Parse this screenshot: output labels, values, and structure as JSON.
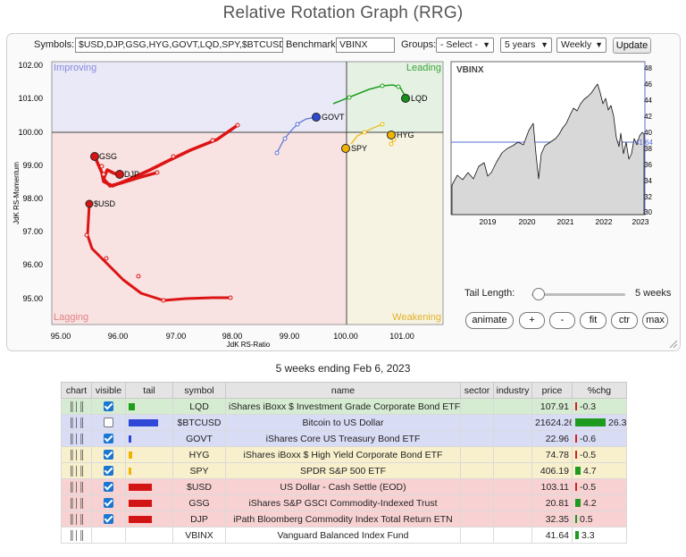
{
  "page_title": "Relative Rotation Graph (RRG)",
  "controls": {
    "symbols_label": "Symbols:",
    "symbols_value": "$USD,DJP,GSG,HYG,GOVT,LQD,SPY,$BTCUSD",
    "benchmark_label": "Benchmark:",
    "benchmark_value": "VBINX",
    "groups_label": "Groups:",
    "groups_value": "- Select -",
    "period_value": "5 years",
    "frequency_value": "Weekly",
    "update_label": "Update"
  },
  "rrg": {
    "y_axis_label": "JdK RS-Momentum",
    "x_axis_label": "JdK RS-Ratio",
    "x_ticks": [
      "95.00",
      "96.00",
      "97.00",
      "98.00",
      "99.00",
      "100.00",
      "101.00"
    ],
    "y_ticks": [
      "102.00",
      "101.00",
      "100.00",
      "99.00",
      "98.00",
      "97.00",
      "96.00",
      "95.00"
    ],
    "quadrants": {
      "improving": "Improving",
      "leading": "Leading",
      "lagging": "Lagging",
      "weakening": "Weakening"
    },
    "quadrant_colors": {
      "improving": "#e9e9f7",
      "leading": "#e5f2e3",
      "lagging": "#f8e2e2",
      "weakening": "#f6f3e2"
    },
    "labels": {
      "GSG": "GSG",
      "DJP": "DJP",
      "USD": "$USD",
      "GOVT": "GOVT",
      "LQD": "LQD",
      "SPY": "SPY",
      "HYG": "HYG"
    }
  },
  "benchmark_chart": {
    "label": "VBINX",
    "x_ticks": [
      "2019",
      "2020",
      "2021",
      "2022",
      "2023"
    ],
    "y_ticks": [
      "48",
      "46",
      "44",
      "42",
      "40",
      "38",
      "36",
      "34",
      "32",
      "30"
    ],
    "last_value": "41.64"
  },
  "tail": {
    "label": "Tail Length:",
    "value": "5 weeks"
  },
  "buttons": {
    "animate": "animate",
    "plus": "+",
    "minus": "-",
    "fit": "fit",
    "ctr": "ctr",
    "max": "max"
  },
  "caption": "5 weeks ending Feb 6, 2023",
  "table": {
    "headers": [
      "chart",
      "visible",
      "tail",
      "symbol",
      "name",
      "sector",
      "industry",
      "price",
      "%chg"
    ],
    "rows": [
      {
        "symbol": "LQD",
        "name": "iShares iBoxx $ Investment Grade Corporate Bond ETF",
        "sector": "",
        "industry": "",
        "price": "107.91",
        "chg": "-0.3",
        "visible": true,
        "row_color": "#d6ecd2",
        "tail_color": "#1f9d1f",
        "tail_len": 0.15,
        "chg_color": "#d62020",
        "chg_mag": 0.01
      },
      {
        "symbol": "$BTCUSD",
        "name": "Bitcoin to US Dollar",
        "sector": "",
        "industry": "",
        "price": "21624.26",
        "chg": "26.3",
        "visible": false,
        "row_color": "#d9dcf5",
        "tail_color": "#2e47d6",
        "tail_len": 0.75,
        "chg_color": "#1e9a1e",
        "chg_mag": 0.7
      },
      {
        "symbol": "GOVT",
        "name": "iShares Core US Treasury Bond ETF",
        "sector": "",
        "industry": "",
        "price": "22.96",
        "chg": "-0.6",
        "visible": true,
        "row_color": "#d9dcf5",
        "tail_color": "#2e47d6",
        "tail_len": 0.05,
        "chg_color": "#d62020",
        "chg_mag": 0.02
      },
      {
        "symbol": "HYG",
        "name": "iShares iBoxx $ High Yield Corporate Bond ETF",
        "sector": "",
        "industry": "",
        "price": "74.78",
        "chg": "-0.5",
        "visible": true,
        "row_color": "#f8efcc",
        "tail_color": "#f0b400",
        "tail_len": 0.08,
        "chg_color": "#d62020",
        "chg_mag": 0.02
      },
      {
        "symbol": "SPY",
        "name": "SPDR S&P 500 ETF",
        "sector": "",
        "industry": "",
        "price": "406.19",
        "chg": "4.7",
        "visible": true,
        "row_color": "#f8efcc",
        "tail_color": "#f0b400",
        "tail_len": 0.05,
        "chg_color": "#1e9a1e",
        "chg_mag": 0.13
      },
      {
        "symbol": "$USD",
        "name": "US Dollar - Cash Settle (EOD)",
        "sector": "",
        "industry": "",
        "price": "103.11",
        "chg": "-0.5",
        "visible": true,
        "row_color": "#f8d2d2",
        "tail_color": "#d21414",
        "tail_len": 0.6,
        "chg_color": "#d62020",
        "chg_mag": 0.02
      },
      {
        "symbol": "GSG",
        "name": "iShares S&P GSCI Commodity-Indexed Trust",
        "sector": "",
        "industry": "",
        "price": "20.81",
        "chg": "4.2",
        "visible": true,
        "row_color": "#f8d2d2",
        "tail_color": "#d21414",
        "tail_len": 0.6,
        "chg_color": "#1e9a1e",
        "chg_mag": 0.12
      },
      {
        "symbol": "DJP",
        "name": "iPath Bloomberg Commodity Index Total Return ETN",
        "sector": "",
        "industry": "",
        "price": "32.35",
        "chg": "0.5",
        "visible": true,
        "row_color": "#f8d2d2",
        "tail_color": "#d21414",
        "tail_len": 0.6,
        "chg_color": "#1e9a1e",
        "chg_mag": 0.02
      },
      {
        "symbol": "VBINX",
        "name": "Vanguard Balanced Index Fund",
        "sector": "",
        "industry": "",
        "price": "41.64",
        "chg": "3.3",
        "visible": null,
        "row_color": "#ffffff",
        "tail_color": "",
        "tail_len": 0,
        "chg_color": "#1e9a1e",
        "chg_mag": 0.09
      }
    ]
  }
}
